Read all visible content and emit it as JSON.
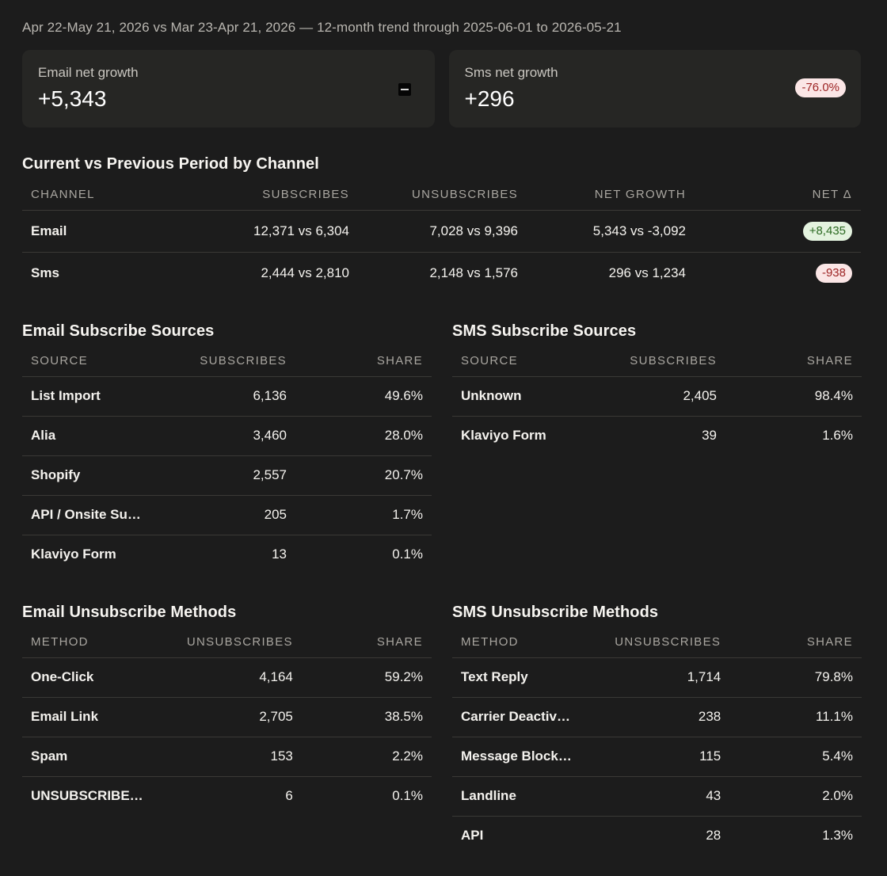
{
  "header": {
    "subtitle": "Apr 22-May 21, 2026 vs Mar 23-Apr 21, 2026 — 12-month trend through 2025-06-01 to 2026-05-21"
  },
  "cards": [
    {
      "label": "Email net growth",
      "value": "+5,343",
      "badge": ""
    },
    {
      "label": "Sms net growth",
      "value": "+296",
      "badge": "-76.0%"
    }
  ],
  "channel": {
    "title": "Current vs Previous Period by Channel",
    "columns": [
      "CHANNEL",
      "SUBSCRIBES",
      "UNSUBSCRIBES",
      "NET GROWTH",
      "NET Δ"
    ],
    "rows": [
      {
        "channel": "Email",
        "subscribes": "12,371 vs 6,304",
        "unsubscribes": "7,028 vs 9,396",
        "net": "5,343 vs -3,092",
        "delta": "+8,435"
      },
      {
        "channel": "Sms",
        "subscribes": "2,444 vs 2,810",
        "unsubscribes": "2,148 vs 1,576",
        "net": "296 vs 1,234",
        "delta": "-938"
      }
    ]
  },
  "email_sources": {
    "title": "Email Subscribe Sources",
    "columns": [
      "SOURCE",
      "SUBSCRIBES",
      "SHARE"
    ],
    "rows": [
      {
        "name": "List Import",
        "count": "6,136",
        "share": "49.6%"
      },
      {
        "name": "Alia",
        "count": "3,460",
        "share": "28.0%"
      },
      {
        "name": "Shopify",
        "count": "2,557",
        "share": "20.7%"
      },
      {
        "name": "API / Onsite Su…",
        "count": "205",
        "share": "1.7%"
      },
      {
        "name": "Klaviyo Form",
        "count": "13",
        "share": "0.1%"
      }
    ]
  },
  "sms_sources": {
    "title": "SMS Subscribe Sources",
    "columns": [
      "SOURCE",
      "SUBSCRIBES",
      "SHARE"
    ],
    "rows": [
      {
        "name": "Unknown",
        "count": "2,405",
        "share": "98.4%"
      },
      {
        "name": "Klaviyo Form",
        "count": "39",
        "share": "1.6%"
      }
    ]
  },
  "email_unsub": {
    "title": "Email Unsubscribe Methods",
    "columns": [
      "METHOD",
      "UNSUBSCRIBES",
      "SHARE"
    ],
    "rows": [
      {
        "name": "One-Click",
        "count": "4,164",
        "share": "59.2%"
      },
      {
        "name": "Email Link",
        "count": "2,705",
        "share": "38.5%"
      },
      {
        "name": "Spam",
        "count": "153",
        "share": "2.2%"
      },
      {
        "name": "UNSUBSCRIBE…",
        "count": "6",
        "share": "0.1%"
      }
    ]
  },
  "sms_unsub": {
    "title": "SMS Unsubscribe Methods",
    "columns": [
      "METHOD",
      "UNSUBSCRIBES",
      "SHARE"
    ],
    "rows": [
      {
        "name": "Text Reply",
        "count": "1,714",
        "share": "79.8%"
      },
      {
        "name": "Carrier Deactiv…",
        "count": "238",
        "share": "11.1%"
      },
      {
        "name": "Message Block…",
        "count": "115",
        "share": "5.4%"
      },
      {
        "name": "Landline",
        "count": "43",
        "share": "2.0%"
      },
      {
        "name": "API",
        "count": "28",
        "share": "1.3%"
      }
    ]
  }
}
